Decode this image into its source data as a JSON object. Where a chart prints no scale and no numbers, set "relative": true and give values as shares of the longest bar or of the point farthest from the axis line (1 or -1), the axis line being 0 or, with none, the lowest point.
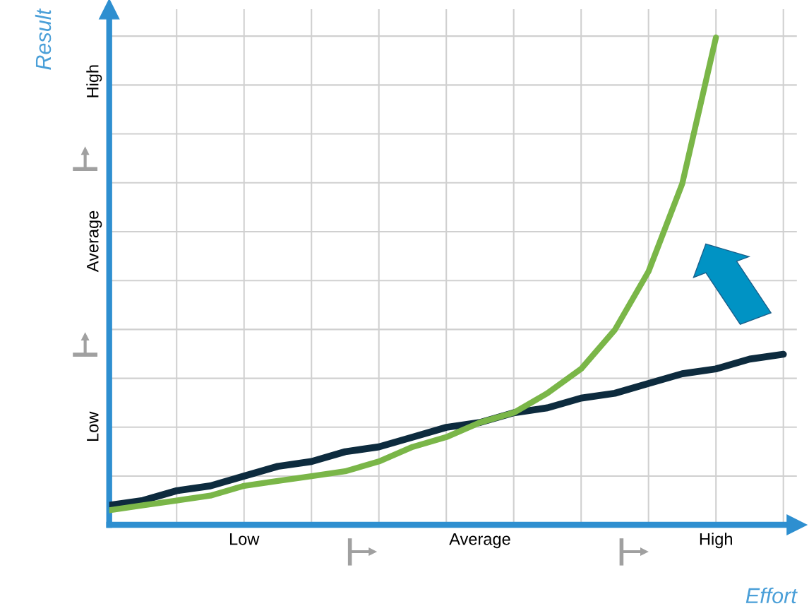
{
  "chart_data": {
    "type": "line",
    "xlabel": "Effort",
    "ylabel": "Result",
    "relative": true,
    "categories": [
      null,
      null,
      null,
      null,
      "Low",
      null,
      null,
      null,
      null,
      null,
      null,
      "Average",
      null,
      null,
      null,
      null,
      null,
      null,
      "High",
      null,
      null
    ],
    "annotations": [
      "Low",
      "Average",
      "High"
    ],
    "grid": true,
    "marker": "none",
    "line_style": "solid",
    "tick_labels": "x",
    "series": [
      {
        "color": "#0d2b3e",
        "values": [
          0.04,
          0.05,
          0.07,
          0.08,
          0.1,
          0.12,
          0.13,
          0.15,
          0.16,
          0.18,
          0.2,
          0.21,
          0.23,
          0.24,
          0.26,
          0.27,
          0.29,
          0.31,
          0.32,
          0.34,
          0.35
        ]
      },
      {
        "color": "#7ab648",
        "values": [
          0.03,
          0.04,
          0.05,
          0.06,
          0.08,
          0.09,
          0.1,
          0.11,
          0.13,
          0.16,
          0.18,
          0.21,
          0.23,
          0.27,
          0.32,
          0.4,
          0.52,
          0.7,
          1,
          null,
          null
        ]
      }
    ]
  }
}
